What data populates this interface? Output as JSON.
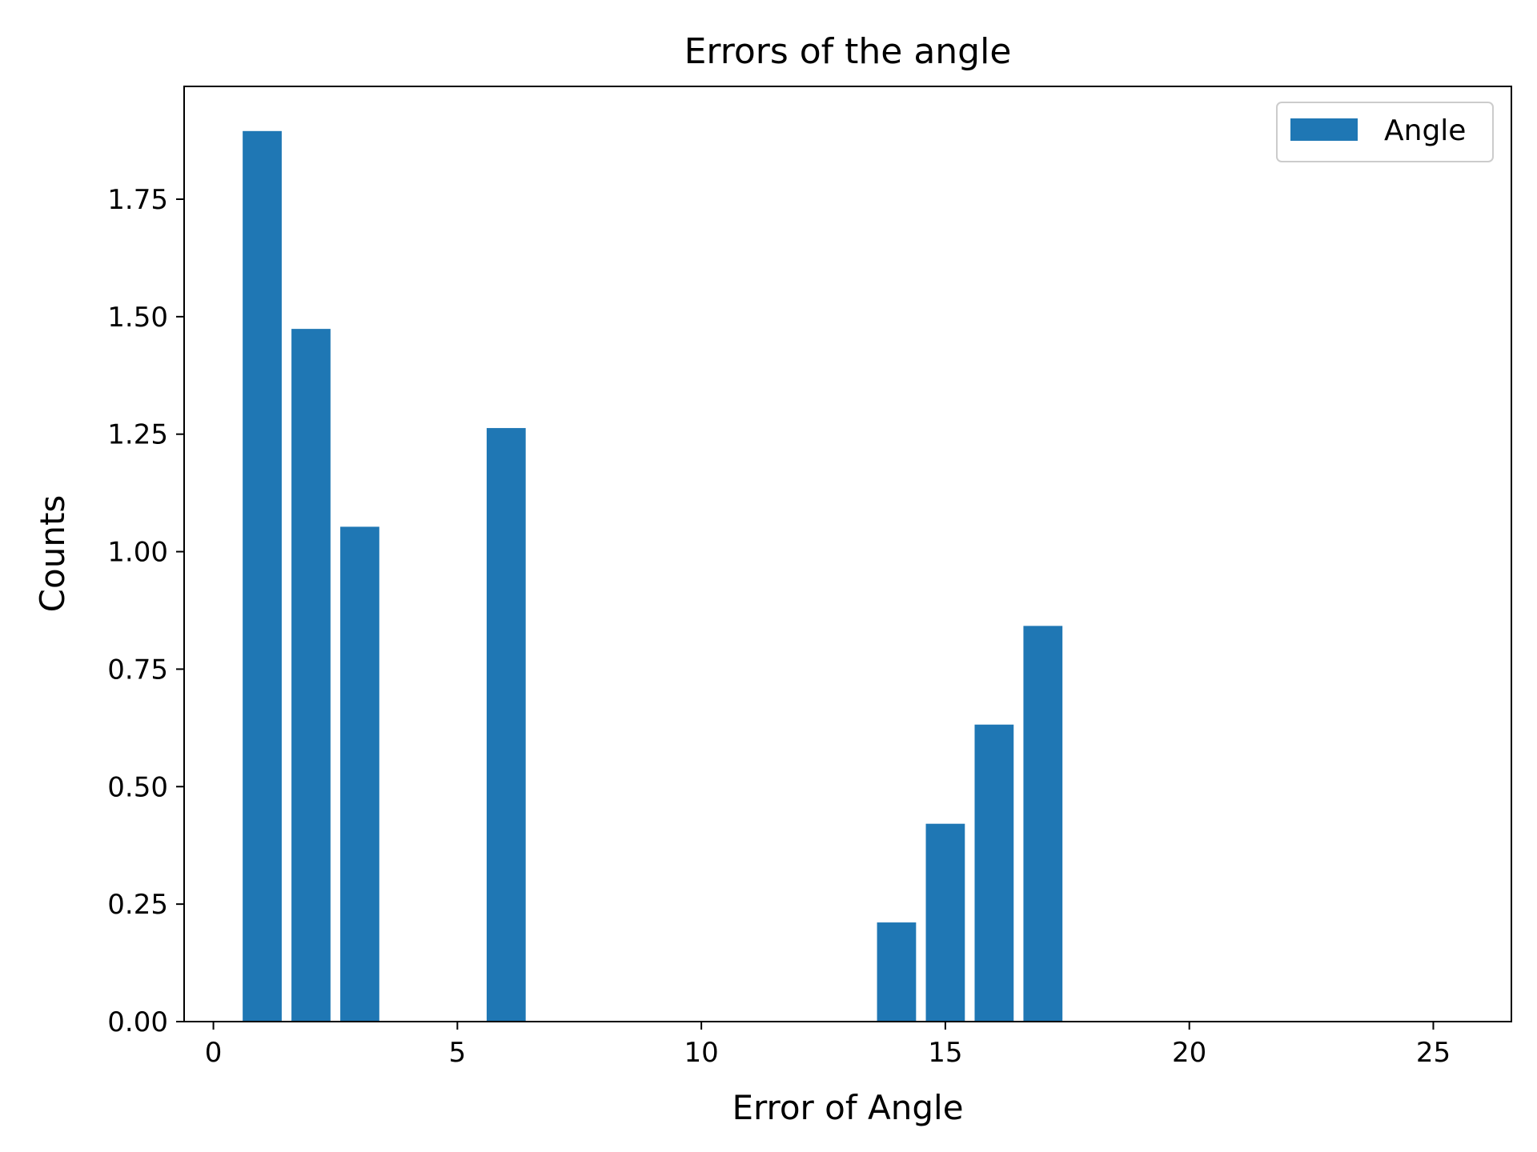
{
  "chart_data": {
    "type": "bar",
    "title": "Errors of the angle",
    "xlabel": "Error of Angle",
    "ylabel": "Counts",
    "x": [
      1,
      2,
      3,
      6,
      14,
      15,
      16,
      17
    ],
    "values": [
      1.895,
      1.474,
      1.053,
      1.263,
      0.211,
      0.421,
      0.632,
      0.842
    ],
    "bar_width": 0.8,
    "xlim": [
      -0.6,
      26.6
    ],
    "ylim": [
      0,
      1.99
    ],
    "xticks": [
      0,
      5,
      10,
      15,
      20,
      25
    ],
    "yticks": [
      0,
      0.25,
      0.5,
      0.75,
      1.0,
      1.25,
      1.5,
      1.75
    ],
    "xtick_labels": [
      "0",
      "5",
      "10",
      "15",
      "20",
      "25"
    ],
    "ytick_labels": [
      "0.00",
      "0.25",
      "0.50",
      "0.75",
      "1.00",
      "1.25",
      "1.50",
      "1.75"
    ],
    "grid": false,
    "legend": {
      "position": "top-right",
      "entries": [
        {
          "name": "Angle",
          "color": "#1f77b4"
        }
      ]
    },
    "colors": {
      "bar": "#1f77b4"
    }
  }
}
